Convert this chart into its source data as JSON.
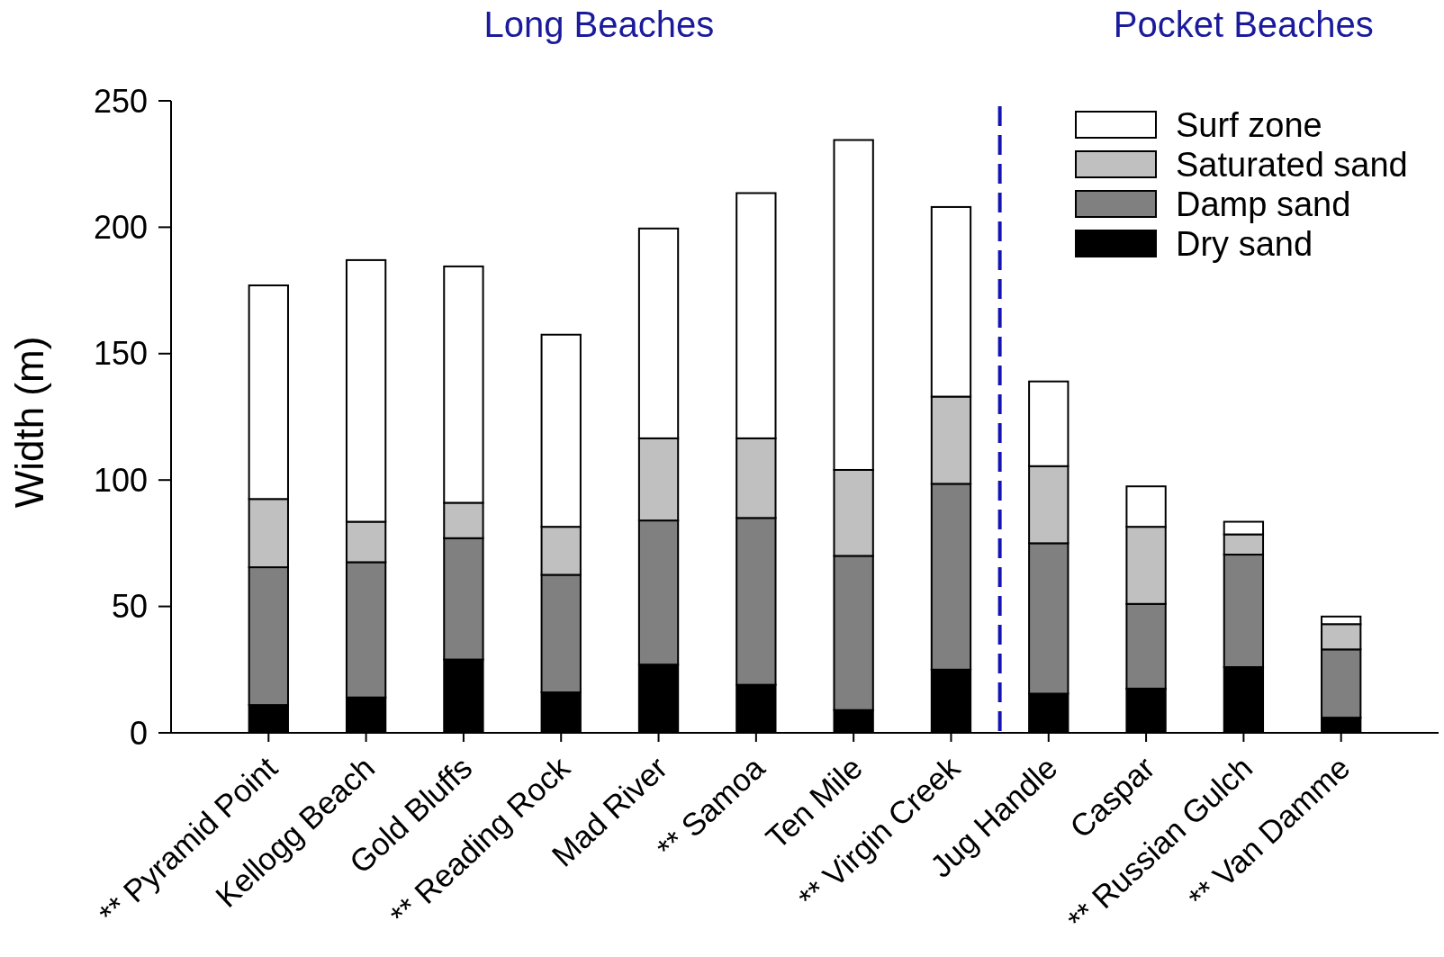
{
  "chart_data": {
    "type": "bar",
    "stacked": true,
    "ylabel": "Width (m)",
    "categories": [
      "** Pyramid Point",
      "Kellogg Beach",
      "Gold Bluffs",
      "** Reading Rock",
      "Mad River",
      "** Samoa",
      "Ten Mile",
      "** Virgin Creek",
      "Jug Handle",
      "Caspar",
      "** Russian Gulch",
      "** Van Damme"
    ],
    "series": [
      {
        "name": "Dry sand",
        "color": "#000000",
        "values": [
          11,
          14,
          29,
          16,
          27,
          19,
          9,
          25,
          15.5,
          17.5,
          26,
          6
        ]
      },
      {
        "name": "Damp sand",
        "color": "#808080",
        "values": [
          54.5,
          53.5,
          48,
          46.5,
          57,
          66,
          61,
          73.5,
          59.5,
          33.5,
          44.5,
          27
        ]
      },
      {
        "name": "Saturated sand",
        "color": "#c0c0c0",
        "values": [
          27,
          16,
          14,
          19,
          32.5,
          31.5,
          34,
          34.5,
          30.5,
          30.5,
          8,
          10
        ]
      },
      {
        "name": "Surf zone",
        "color": "#ffffff",
        "values": [
          84.5,
          103.5,
          93.5,
          76,
          83,
          97,
          130.5,
          75,
          33.5,
          16,
          5,
          3
        ]
      }
    ],
    "ylim": [
      0,
      250
    ],
    "yticks": [
      0,
      50,
      100,
      150,
      200,
      250
    ],
    "legend": "top right",
    "annotations": [
      "Long Beaches",
      "Pocket Beaches"
    ]
  }
}
